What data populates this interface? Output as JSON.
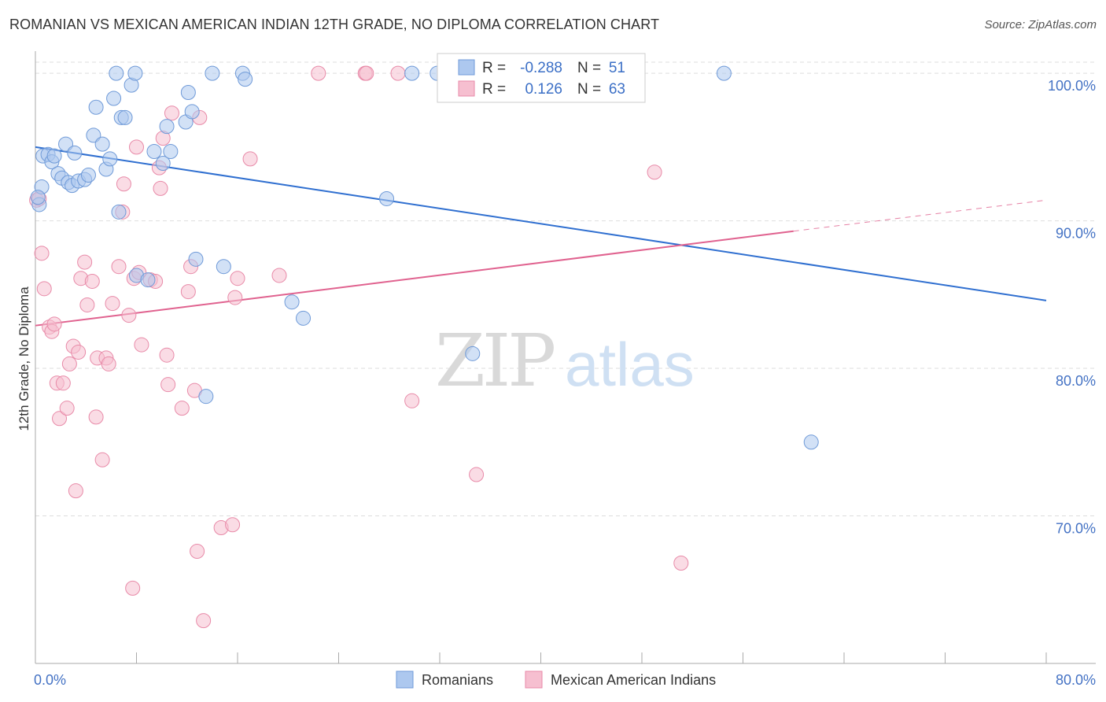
{
  "title": "ROMANIAN VS MEXICAN AMERICAN INDIAN 12TH GRADE, NO DIPLOMA CORRELATION CHART",
  "source": "Source: ZipAtlas.com",
  "watermark": {
    "zip": "ZIP",
    "atlas": "atlas"
  },
  "colors": {
    "blue_fill": "#adc8ef",
    "blue_stroke": "#6f9ad8",
    "blue_line": "#2f6fd0",
    "pink_fill": "#f6bfd0",
    "pink_stroke": "#e88aa8",
    "pink_line": "#e0628f",
    "tick_text": "#4472c4",
    "grid": "#dddddd"
  },
  "legend": {
    "r_label": "R =",
    "n_label": "N =",
    "series": [
      {
        "r": "-0.288",
        "n": "51"
      },
      {
        "r": "0.126",
        "n": "63"
      }
    ]
  },
  "bottom_legend": [
    "Romanians",
    "Mexican American Indians"
  ],
  "chart_data": {
    "type": "scatter",
    "title": "ROMANIAN VS MEXICAN AMERICAN INDIAN 12TH GRADE, NO DIPLOMA CORRELATION CHART",
    "xlabel": "",
    "ylabel": "12th Grade, No Diploma",
    "xlim": [
      0,
      80
    ],
    "ylim": [
      60,
      101.5
    ],
    "x_tick_labels": [
      "0.0%",
      "80.0%"
    ],
    "y_ticks": [
      70,
      80,
      90,
      100
    ],
    "y_tick_labels": [
      "70.0%",
      "80.0%",
      "90.0%",
      "100.0%"
    ],
    "series": [
      {
        "name": "Romanians",
        "r": -0.288,
        "n": 51,
        "trend": {
          "x0": 0,
          "y0": 95.0,
          "x1": 80,
          "y1": 84.6
        },
        "points": [
          [
            0.3,
            91.1
          ],
          [
            0.5,
            92.3
          ],
          [
            0.6,
            94.4
          ],
          [
            1.0,
            94.5
          ],
          [
            1.3,
            94.0
          ],
          [
            1.5,
            94.4
          ],
          [
            1.8,
            93.2
          ],
          [
            2.1,
            92.9
          ],
          [
            2.4,
            95.2
          ],
          [
            2.6,
            92.6
          ],
          [
            2.9,
            92.4
          ],
          [
            3.1,
            94.6
          ],
          [
            3.4,
            92.7
          ],
          [
            3.9,
            92.8
          ],
          [
            4.2,
            93.1
          ],
          [
            4.6,
            95.8
          ],
          [
            4.8,
            97.7
          ],
          [
            5.3,
            95.2
          ],
          [
            5.6,
            93.5
          ],
          [
            5.9,
            94.2
          ],
          [
            6.2,
            98.3
          ],
          [
            6.4,
            100.0
          ],
          [
            6.6,
            90.6
          ],
          [
            6.8,
            97.0
          ],
          [
            7.1,
            97.0
          ],
          [
            7.6,
            99.2
          ],
          [
            7.9,
            100.0
          ],
          [
            8.0,
            86.3
          ],
          [
            8.9,
            86.0
          ],
          [
            9.4,
            94.7
          ],
          [
            10.1,
            93.9
          ],
          [
            10.4,
            96.4
          ],
          [
            10.7,
            94.7
          ],
          [
            11.9,
            96.7
          ],
          [
            12.1,
            98.7
          ],
          [
            12.4,
            97.4
          ],
          [
            12.7,
            87.4
          ],
          [
            13.5,
            78.1
          ],
          [
            14.0,
            100.0
          ],
          [
            14.9,
            86.9
          ],
          [
            16.4,
            100.0
          ],
          [
            16.6,
            99.6
          ],
          [
            20.3,
            84.5
          ],
          [
            21.2,
            83.4
          ],
          [
            27.8,
            91.5
          ],
          [
            29.8,
            100.0
          ],
          [
            31.8,
            100.0
          ],
          [
            34.6,
            81.0
          ],
          [
            54.5,
            100.0
          ],
          [
            61.4,
            75.0
          ],
          [
            0.2,
            91.6
          ]
        ]
      },
      {
        "name": "Mexican American Indians",
        "r": 0.126,
        "n": 63,
        "trend": {
          "x0": 0,
          "y0": 82.9,
          "x1": 60,
          "y1": 89.3,
          "dash_x0": 60,
          "dash_y0": 89.3,
          "dash_x1": 80,
          "dash_y1": 91.4
        },
        "points": [
          [
            0.1,
            91.4
          ],
          [
            0.3,
            91.5
          ],
          [
            0.5,
            87.8
          ],
          [
            0.7,
            85.4
          ],
          [
            1.1,
            82.8
          ],
          [
            1.3,
            82.5
          ],
          [
            1.5,
            83.0
          ],
          [
            1.7,
            79.0
          ],
          [
            1.9,
            76.6
          ],
          [
            2.2,
            79.0
          ],
          [
            2.5,
            77.3
          ],
          [
            2.7,
            80.3
          ],
          [
            3.0,
            81.5
          ],
          [
            3.2,
            71.7
          ],
          [
            3.4,
            81.1
          ],
          [
            3.6,
            86.1
          ],
          [
            3.9,
            87.2
          ],
          [
            4.1,
            84.3
          ],
          [
            4.5,
            85.9
          ],
          [
            4.8,
            76.7
          ],
          [
            4.9,
            80.7
          ],
          [
            5.3,
            73.8
          ],
          [
            5.6,
            80.7
          ],
          [
            5.8,
            80.3
          ],
          [
            6.1,
            84.4
          ],
          [
            6.6,
            86.9
          ],
          [
            6.9,
            90.6
          ],
          [
            7.0,
            92.5
          ],
          [
            7.4,
            83.6
          ],
          [
            7.7,
            65.1
          ],
          [
            7.8,
            86.1
          ],
          [
            8.0,
            95.0
          ],
          [
            8.2,
            86.5
          ],
          [
            8.4,
            81.6
          ],
          [
            9.1,
            86.0
          ],
          [
            9.5,
            85.9
          ],
          [
            9.8,
            93.6
          ],
          [
            9.9,
            92.2
          ],
          [
            10.1,
            95.6
          ],
          [
            10.4,
            80.9
          ],
          [
            10.5,
            78.9
          ],
          [
            10.8,
            97.3
          ],
          [
            11.6,
            77.3
          ],
          [
            12.1,
            85.2
          ],
          [
            12.3,
            86.9
          ],
          [
            12.6,
            78.5
          ],
          [
            12.8,
            67.6
          ],
          [
            13.0,
            97.0
          ],
          [
            13.3,
            62.9
          ],
          [
            14.7,
            69.2
          ],
          [
            15.6,
            69.4
          ],
          [
            15.8,
            84.8
          ],
          [
            16.0,
            86.1
          ],
          [
            17.0,
            94.2
          ],
          [
            19.3,
            86.3
          ],
          [
            22.4,
            100.0
          ],
          [
            26.1,
            100.0
          ],
          [
            26.2,
            100.0
          ],
          [
            28.7,
            100.0
          ],
          [
            29.8,
            77.8
          ],
          [
            34.9,
            72.8
          ],
          [
            49.0,
            93.3
          ],
          [
            51.1,
            66.8
          ]
        ]
      }
    ]
  }
}
